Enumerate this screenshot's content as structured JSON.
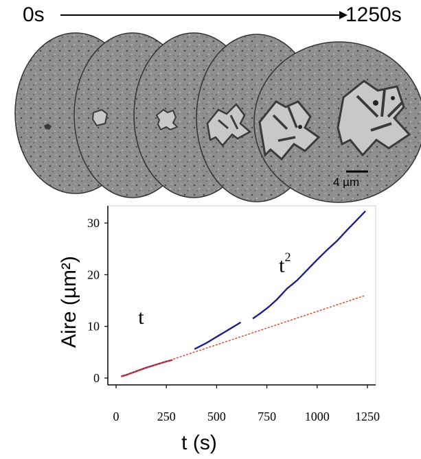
{
  "timeline": {
    "start_label": "0s",
    "end_label": "1250s"
  },
  "micrographs": {
    "frame_count": 5,
    "scale_bar_label": "4 µm",
    "background_color": "#8f8f8f",
    "domain_color": "#c8c8c8",
    "domain_border_color": "#3a3a3a"
  },
  "chart_data": {
    "type": "line",
    "xlabel": "t (s)",
    "ylabel": "Aire (µm²)",
    "xlim": [
      0,
      1250
    ],
    "ylim": [
      0,
      32
    ],
    "xticks": [
      0,
      250,
      500,
      750,
      1000,
      1250
    ],
    "yticks": [
      0,
      10,
      20,
      30
    ],
    "grid": false,
    "annotations": [
      {
        "text": "t",
        "x": 110,
        "y": 10.5
      },
      {
        "text": "t",
        "superscript": "2",
        "x": 810,
        "y": 20.5
      }
    ],
    "series": [
      {
        "color": "#8a1f5a",
        "x": [
          25,
          50,
          100,
          150,
          200,
          250,
          280
        ],
        "y": [
          0.3,
          0.6,
          1.3,
          2.0,
          2.6,
          3.2,
          3.5
        ]
      },
      {
        "color": "#1f1f86",
        "x": [
          390,
          420,
          450,
          480,
          510,
          540,
          570,
          600,
          620
        ],
        "y": [
          5.6,
          6.2,
          6.8,
          7.5,
          8.2,
          8.9,
          9.6,
          10.3,
          10.8
        ]
      },
      {
        "color": "#1f1f86",
        "x": [
          680,
          720,
          760,
          800,
          850,
          900,
          950,
          1000,
          1050,
          1100,
          1150,
          1200,
          1240
        ],
        "y": [
          11.5,
          12.6,
          13.8,
          15.2,
          17.3,
          18.9,
          20.9,
          22.9,
          24.8,
          26.6,
          28.7,
          30.7,
          32.3
        ]
      },
      {
        "color": "#e0421b",
        "dashed": true,
        "x": [
          25,
          1240
        ],
        "y": [
          0.3,
          16.0
        ]
      }
    ]
  }
}
